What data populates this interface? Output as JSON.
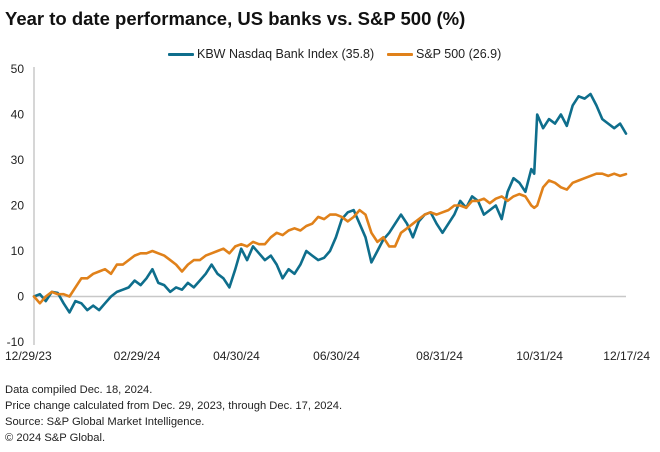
{
  "chart_data": {
    "type": "line",
    "title": "Year to date performance, US banks vs. S&P 500 (%)",
    "xlabel": "",
    "ylabel": "",
    "ylim": [
      -10,
      50
    ],
    "yticks": [
      -10,
      0,
      10,
      20,
      30,
      40,
      50
    ],
    "ytick_labels": [
      "-10",
      "0",
      "10",
      "20",
      "30",
      "40",
      "50"
    ],
    "xtick_labels": [
      "12/29/23",
      "02/29/24",
      "04/30/24",
      "06/30/24",
      "08/31/24",
      "10/31/24",
      "12/17/24"
    ],
    "xtick_positions": [
      0,
      0.174,
      0.342,
      0.511,
      0.685,
      0.854,
      1.0
    ],
    "grid": false,
    "zero_line": true,
    "legend_position": "top-center",
    "series": [
      {
        "name": "KBW Nasdaq Bank Index (35.8)",
        "color": "#0e6e8c",
        "x": [
          0,
          0.01,
          0.02,
          0.03,
          0.04,
          0.05,
          0.06,
          0.07,
          0.08,
          0.09,
          0.1,
          0.11,
          0.12,
          0.13,
          0.14,
          0.15,
          0.16,
          0.17,
          0.18,
          0.19,
          0.2,
          0.21,
          0.22,
          0.23,
          0.24,
          0.25,
          0.26,
          0.27,
          0.28,
          0.29,
          0.3,
          0.31,
          0.32,
          0.33,
          0.34,
          0.35,
          0.36,
          0.37,
          0.38,
          0.39,
          0.4,
          0.41,
          0.42,
          0.43,
          0.44,
          0.45,
          0.46,
          0.47,
          0.48,
          0.49,
          0.5,
          0.51,
          0.52,
          0.53,
          0.54,
          0.55,
          0.56,
          0.57,
          0.58,
          0.59,
          0.6,
          0.61,
          0.62,
          0.63,
          0.64,
          0.65,
          0.66,
          0.67,
          0.68,
          0.69,
          0.7,
          0.71,
          0.72,
          0.73,
          0.74,
          0.75,
          0.76,
          0.77,
          0.78,
          0.79,
          0.8,
          0.81,
          0.82,
          0.83,
          0.84,
          0.845,
          0.85,
          0.86,
          0.87,
          0.88,
          0.89,
          0.9,
          0.91,
          0.92,
          0.93,
          0.94,
          0.95,
          0.96,
          0.97,
          0.98,
          0.99,
          1.0
        ],
        "values": [
          0,
          0.5,
          -1,
          1,
          0.8,
          -1.5,
          -3.5,
          -1,
          -1.5,
          -3,
          -2,
          -3,
          -1.5,
          0,
          1,
          1.5,
          2,
          3.5,
          2.5,
          4,
          6,
          3,
          2.5,
          1,
          2,
          1.5,
          3,
          2,
          3.5,
          5,
          7,
          5,
          4,
          2,
          6,
          10.5,
          8,
          11,
          9.5,
          8,
          9,
          7,
          4,
          6,
          5,
          7,
          10,
          9,
          8,
          8.5,
          10,
          13,
          17,
          18.5,
          19,
          16,
          13,
          7.5,
          10,
          12.5,
          14,
          16,
          18,
          16,
          13,
          16.5,
          18,
          18.5,
          16,
          14,
          16,
          18,
          21,
          19.5,
          22,
          21,
          18,
          19,
          20,
          17,
          23,
          26,
          25,
          23,
          28,
          27,
          40,
          37,
          39,
          38,
          40,
          37.5,
          42,
          44,
          43.5,
          44.5,
          42,
          39,
          38,
          37,
          38,
          35.8
        ]
      },
      {
        "name": "S&P 500 (26.9)",
        "color": "#e0811a",
        "x": [
          0,
          0.01,
          0.02,
          0.03,
          0.04,
          0.05,
          0.06,
          0.07,
          0.08,
          0.09,
          0.1,
          0.11,
          0.12,
          0.13,
          0.14,
          0.15,
          0.16,
          0.17,
          0.18,
          0.19,
          0.2,
          0.21,
          0.22,
          0.23,
          0.24,
          0.25,
          0.26,
          0.27,
          0.28,
          0.29,
          0.3,
          0.31,
          0.32,
          0.33,
          0.34,
          0.35,
          0.36,
          0.37,
          0.38,
          0.39,
          0.4,
          0.41,
          0.42,
          0.43,
          0.44,
          0.45,
          0.46,
          0.47,
          0.48,
          0.49,
          0.5,
          0.51,
          0.52,
          0.53,
          0.54,
          0.55,
          0.56,
          0.57,
          0.58,
          0.59,
          0.6,
          0.61,
          0.62,
          0.63,
          0.64,
          0.65,
          0.66,
          0.67,
          0.68,
          0.69,
          0.7,
          0.71,
          0.72,
          0.73,
          0.74,
          0.75,
          0.76,
          0.77,
          0.78,
          0.79,
          0.8,
          0.81,
          0.82,
          0.83,
          0.84,
          0.845,
          0.85,
          0.86,
          0.87,
          0.88,
          0.89,
          0.9,
          0.91,
          0.92,
          0.93,
          0.94,
          0.95,
          0.96,
          0.97,
          0.98,
          0.99,
          1.0
        ],
        "values": [
          0,
          -1.5,
          0,
          1,
          0.5,
          0.5,
          0,
          2,
          4,
          4,
          5,
          5.5,
          6,
          5,
          7,
          7,
          8,
          9,
          9.5,
          9.5,
          10,
          9.5,
          9,
          8,
          7,
          5.5,
          7,
          8,
          8,
          9,
          9.5,
          10,
          10.5,
          9.5,
          11,
          11.5,
          11,
          12,
          11.5,
          11.5,
          13,
          14,
          13.5,
          14.5,
          15,
          14.5,
          15.5,
          16,
          17.5,
          17,
          18,
          18,
          17.5,
          16.5,
          17.5,
          19,
          18,
          14,
          12,
          13,
          11,
          11,
          14,
          15,
          16,
          17,
          18,
          18.5,
          18,
          18.5,
          19,
          20,
          20,
          19.5,
          21,
          21,
          21.5,
          20.5,
          21.5,
          22,
          21,
          22,
          22.5,
          22,
          20,
          19.5,
          20,
          24,
          25.5,
          25,
          24,
          23.5,
          25,
          25.5,
          26,
          26.5,
          27,
          27,
          26.5,
          27,
          26.5,
          26.9
        ]
      }
    ]
  },
  "legend": {
    "items": [
      {
        "label": "KBW Nasdaq Bank Index (35.8)",
        "color": "#0e6e8c"
      },
      {
        "label": "S&P 500 (26.9)",
        "color": "#e0811a"
      }
    ]
  },
  "notes": [
    "Data compiled Dec. 18, 2024.",
    "Price change calculated from Dec. 29, 2023, through Dec. 17, 2024.",
    "Source: S&P Global Market Intelligence.",
    "© 2024 S&P Global."
  ]
}
